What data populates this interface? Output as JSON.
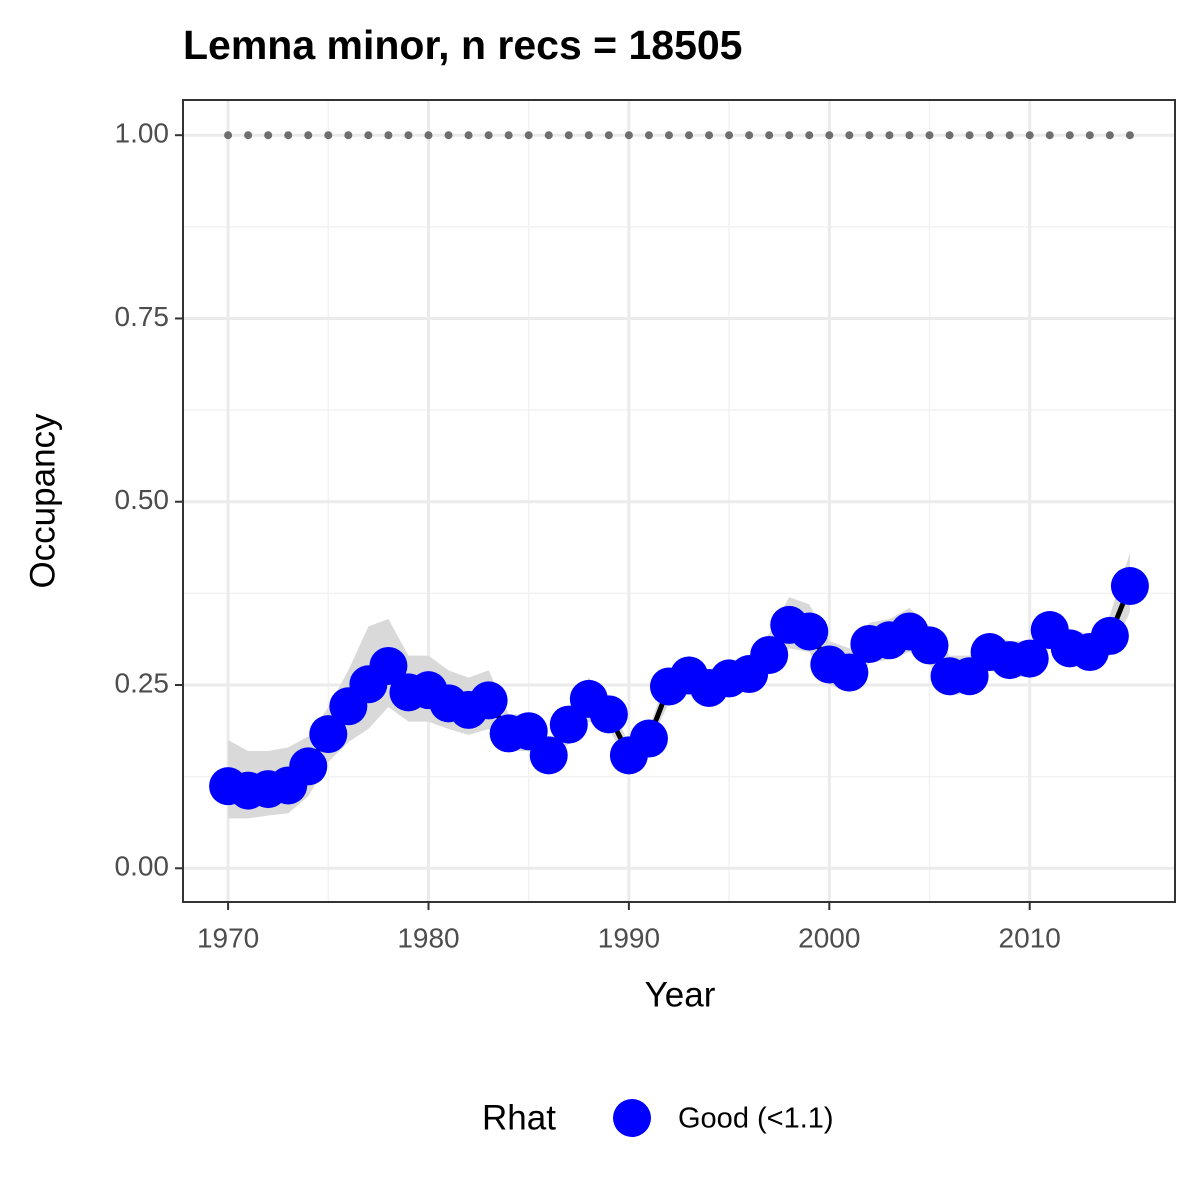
{
  "chart_data": {
    "type": "line",
    "title": "Lemna minor, n recs = 18505",
    "x_label": "Year",
    "y_label": "Occupancy",
    "x": [
      1970,
      1971,
      1972,
      1973,
      1974,
      1975,
      1976,
      1977,
      1978,
      1979,
      1980,
      1981,
      1982,
      1983,
      1984,
      1985,
      1986,
      1987,
      1988,
      1989,
      1990,
      1991,
      1992,
      1993,
      1994,
      1995,
      1996,
      1997,
      1998,
      1999,
      2000,
      2001,
      2002,
      2003,
      2004,
      2005,
      2006,
      2007,
      2008,
      2009,
      2010,
      2011,
      2012,
      2013,
      2014,
      2015
    ],
    "series": [
      {
        "name": "Good (<1.1)",
        "color": "#0000ff",
        "line_color": "#000000",
        "band_color": "#d9d9d9",
        "values": [
          0.112,
          0.106,
          0.108,
          0.113,
          0.139,
          0.183,
          0.221,
          0.251,
          0.276,
          0.24,
          0.243,
          0.225,
          0.216,
          0.229,
          0.184,
          0.187,
          0.154,
          0.196,
          0.231,
          0.21,
          0.154,
          0.177,
          0.248,
          0.263,
          0.246,
          0.259,
          0.265,
          0.291,
          0.332,
          0.323,
          0.278,
          0.267,
          0.306,
          0.311,
          0.323,
          0.304,
          0.262,
          0.262,
          0.295,
          0.284,
          0.286,
          0.325,
          0.3,
          0.295,
          0.317,
          0.385
        ],
        "lower": [
          0.068,
          0.068,
          0.072,
          0.075,
          0.098,
          0.145,
          0.172,
          0.19,
          0.22,
          0.2,
          0.2,
          0.19,
          0.182,
          0.19,
          0.16,
          0.16,
          0.14,
          0.17,
          0.2,
          0.19,
          0.14,
          0.17,
          0.225,
          0.238,
          0.225,
          0.238,
          0.245,
          0.265,
          0.3,
          0.295,
          0.25,
          0.24,
          0.28,
          0.285,
          0.295,
          0.278,
          0.235,
          0.24,
          0.27,
          0.26,
          0.262,
          0.3,
          0.278,
          0.27,
          0.29,
          0.35
        ],
        "upper": [
          0.175,
          0.16,
          0.16,
          0.165,
          0.18,
          0.22,
          0.27,
          0.33,
          0.34,
          0.29,
          0.29,
          0.27,
          0.26,
          0.27,
          0.21,
          0.21,
          0.17,
          0.22,
          0.26,
          0.23,
          0.17,
          0.19,
          0.27,
          0.29,
          0.27,
          0.28,
          0.29,
          0.32,
          0.37,
          0.36,
          0.31,
          0.3,
          0.335,
          0.34,
          0.355,
          0.33,
          0.29,
          0.29,
          0.32,
          0.31,
          0.31,
          0.35,
          0.325,
          0.32,
          0.345,
          0.43
        ]
      }
    ],
    "reference_line": {
      "value": 1,
      "color": "#6e6e6e"
    },
    "legend_title": "Rhat",
    "legend": "bottom",
    "xlim": [
      1967.75,
      2017.25
    ],
    "xticks": [
      1970,
      1980,
      1990,
      2000,
      2010
    ],
    "ylim": [
      -0.046,
      1.048
    ],
    "yticks": [
      {
        "value": 0,
        "label": "0.00"
      },
      {
        "value": 0.25,
        "label": "0.25"
      },
      {
        "value": 0.5,
        "label": "0.50"
      },
      {
        "value": 0.75,
        "label": "0.75"
      },
      {
        "value": 1,
        "label": "1.00"
      }
    ],
    "grid": true
  }
}
